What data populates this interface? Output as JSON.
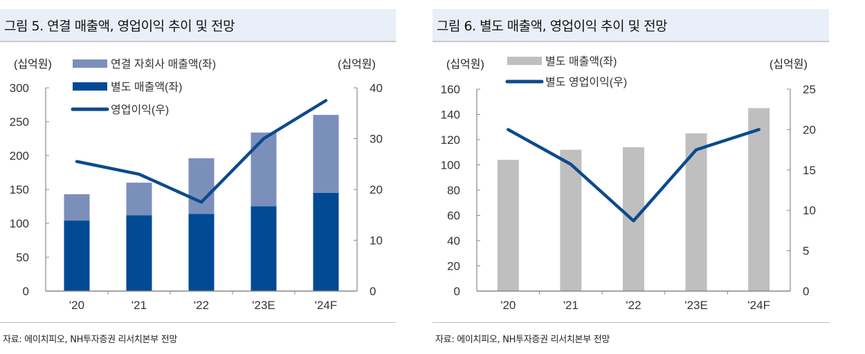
{
  "chart_data": [
    {
      "type": "bar+line",
      "title": "그림 5. 연결 매출액, 영업이익 추이 및 전망",
      "categories": [
        "'20",
        "'21",
        "'22",
        "'23E",
        "'24F"
      ],
      "left_unit": "(십억원)",
      "right_unit": "(십억원)",
      "left_ylim": [
        0,
        300
      ],
      "left_ticks": [
        "0",
        "50",
        "100",
        "150",
        "200",
        "250",
        "300"
      ],
      "right_ylim": [
        0,
        40
      ],
      "right_ticks": [
        "0",
        "10",
        "20",
        "30",
        "40"
      ],
      "stacked": true,
      "series": [
        {
          "name": "별도 매출액(좌)",
          "kind": "bar",
          "axis": "left",
          "color": "#004a93",
          "values": [
            104,
            112,
            114,
            125,
            145
          ]
        },
        {
          "name": "연결 자회사 매출액(좌)",
          "kind": "bar",
          "axis": "left",
          "color": "#7b8fbb",
          "values": [
            39,
            48,
            82,
            109,
            115
          ]
        },
        {
          "name": "영업이익(우)",
          "kind": "line",
          "axis": "right",
          "color": "#0b4a8d",
          "values": [
            25.5,
            23.0,
            17.5,
            30.0,
            37.5
          ]
        }
      ],
      "legend_order": [
        1,
        0,
        2
      ],
      "grid": false,
      "source": "자료: 에이치피오, NH투자증권 리서치본부 전망"
    },
    {
      "type": "bar+line",
      "title": "그림 6. 별도 매출액, 영업이익 추이 및 전망",
      "categories": [
        "'20",
        "'21",
        "'22",
        "'23E",
        "'24F"
      ],
      "left_unit": "(십억원)",
      "right_unit": "(십억원)",
      "left_ylim": [
        0,
        160
      ],
      "left_ticks": [
        "0",
        "20",
        "40",
        "60",
        "80",
        "100",
        "120",
        "140",
        "160"
      ],
      "right_ylim": [
        0,
        25
      ],
      "right_ticks": [
        "0",
        "5",
        "10",
        "15",
        "20",
        "25"
      ],
      "stacked": false,
      "series": [
        {
          "name": "별도 매출액(좌)",
          "kind": "bar",
          "axis": "left",
          "color": "#bfbfbf",
          "values": [
            104,
            112,
            114,
            125,
            145
          ]
        },
        {
          "name": "별도 영업이익(우)",
          "kind": "line",
          "axis": "right",
          "color": "#0b4a8d",
          "values": [
            20.0,
            15.7,
            8.7,
            17.5,
            20.0
          ]
        }
      ],
      "legend_order": [
        0,
        1
      ],
      "grid": false,
      "source": "자료: 에이치피오, NH투자증권 리서치본부 전망"
    }
  ]
}
